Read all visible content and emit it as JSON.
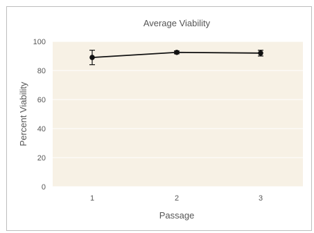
{
  "chart_data": {
    "type": "line",
    "title": "Average Viability",
    "xlabel": "Passage",
    "ylabel": "Percent Viability",
    "categories": [
      "1",
      "2",
      "3"
    ],
    "series": [
      {
        "values": [
          89,
          92.5,
          92
        ],
        "error": [
          5,
          1,
          2
        ]
      }
    ],
    "ylim": [
      0,
      100
    ],
    "yticks": [
      "0",
      "20",
      "40",
      "60",
      "80",
      "100"
    ],
    "grid": true,
    "legend": "none",
    "colors": {
      "plot_background": "#f7f1e5",
      "grid": "#ffffff",
      "line": "#111111",
      "marker": "#111111"
    }
  }
}
